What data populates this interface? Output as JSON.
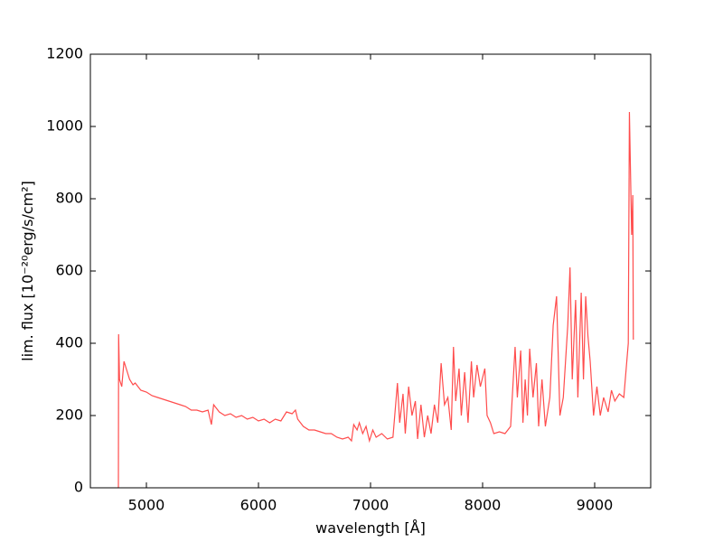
{
  "chart_data": {
    "type": "line",
    "xlabel": "wavelength [Å]",
    "ylabel": "lim. flux [10⁻²⁰erg/s/cm²]",
    "xlim": [
      4500,
      9500
    ],
    "ylim": [
      0,
      1200
    ],
    "xticks": [
      5000,
      6000,
      7000,
      8000,
      9000
    ],
    "yticks": [
      0,
      200,
      400,
      600,
      800,
      1000,
      1200
    ],
    "series": [
      {
        "color": "#ff4c4c",
        "x": [
          4750,
          4752,
          4760,
          4780,
          4800,
          4820,
          4850,
          4880,
          4900,
          4950,
          5000,
          5050,
          5100,
          5150,
          5200,
          5250,
          5300,
          5350,
          5400,
          5450,
          5500,
          5550,
          5580,
          5600,
          5650,
          5700,
          5750,
          5800,
          5850,
          5900,
          5950,
          6000,
          6050,
          6100,
          6150,
          6200,
          6250,
          6300,
          6330,
          6350,
          6400,
          6450,
          6500,
          6550,
          6600,
          6650,
          6700,
          6750,
          6800,
          6830,
          6850,
          6880,
          6900,
          6930,
          6960,
          6990,
          7020,
          7050,
          7100,
          7150,
          7200,
          7240,
          7260,
          7290,
          7310,
          7340,
          7370,
          7400,
          7420,
          7450,
          7480,
          7510,
          7540,
          7570,
          7600,
          7630,
          7660,
          7690,
          7720,
          7740,
          7760,
          7790,
          7810,
          7840,
          7870,
          7900,
          7920,
          7950,
          7980,
          8020,
          8040,
          8070,
          8100,
          8150,
          8200,
          8250,
          8290,
          8310,
          8340,
          8360,
          8380,
          8400,
          8420,
          8450,
          8480,
          8500,
          8530,
          8560,
          8600,
          8630,
          8660,
          8690,
          8720,
          8760,
          8780,
          8800,
          8830,
          8850,
          8880,
          8900,
          8920,
          8940,
          8960,
          8990,
          9020,
          9050,
          9080,
          9120,
          9150,
          9180,
          9220,
          9260,
          9300,
          9310,
          9330,
          9340,
          9345
        ],
        "values": [
          0,
          425,
          300,
          280,
          350,
          330,
          300,
          285,
          290,
          270,
          265,
          255,
          250,
          245,
          240,
          235,
          230,
          225,
          215,
          215,
          210,
          215,
          175,
          230,
          210,
          200,
          205,
          195,
          200,
          190,
          195,
          185,
          190,
          180,
          190,
          185,
          210,
          205,
          215,
          190,
          170,
          160,
          160,
          155,
          150,
          150,
          140,
          135,
          140,
          130,
          175,
          160,
          180,
          150,
          170,
          130,
          160,
          140,
          150,
          135,
          140,
          290,
          180,
          260,
          150,
          280,
          200,
          240,
          135,
          230,
          140,
          200,
          150,
          230,
          180,
          345,
          230,
          250,
          160,
          390,
          240,
          330,
          200,
          320,
          180,
          350,
          250,
          340,
          280,
          330,
          200,
          180,
          150,
          155,
          150,
          170,
          390,
          250,
          380,
          180,
          300,
          200,
          385,
          250,
          345,
          170,
          300,
          170,
          250,
          450,
          530,
          200,
          250,
          450,
          610,
          300,
          520,
          250,
          540,
          300,
          530,
          420,
          350,
          200,
          280,
          200,
          250,
          210,
          270,
          240,
          260,
          250,
          400,
          1040,
          700,
          810,
          410
        ]
      }
    ]
  }
}
